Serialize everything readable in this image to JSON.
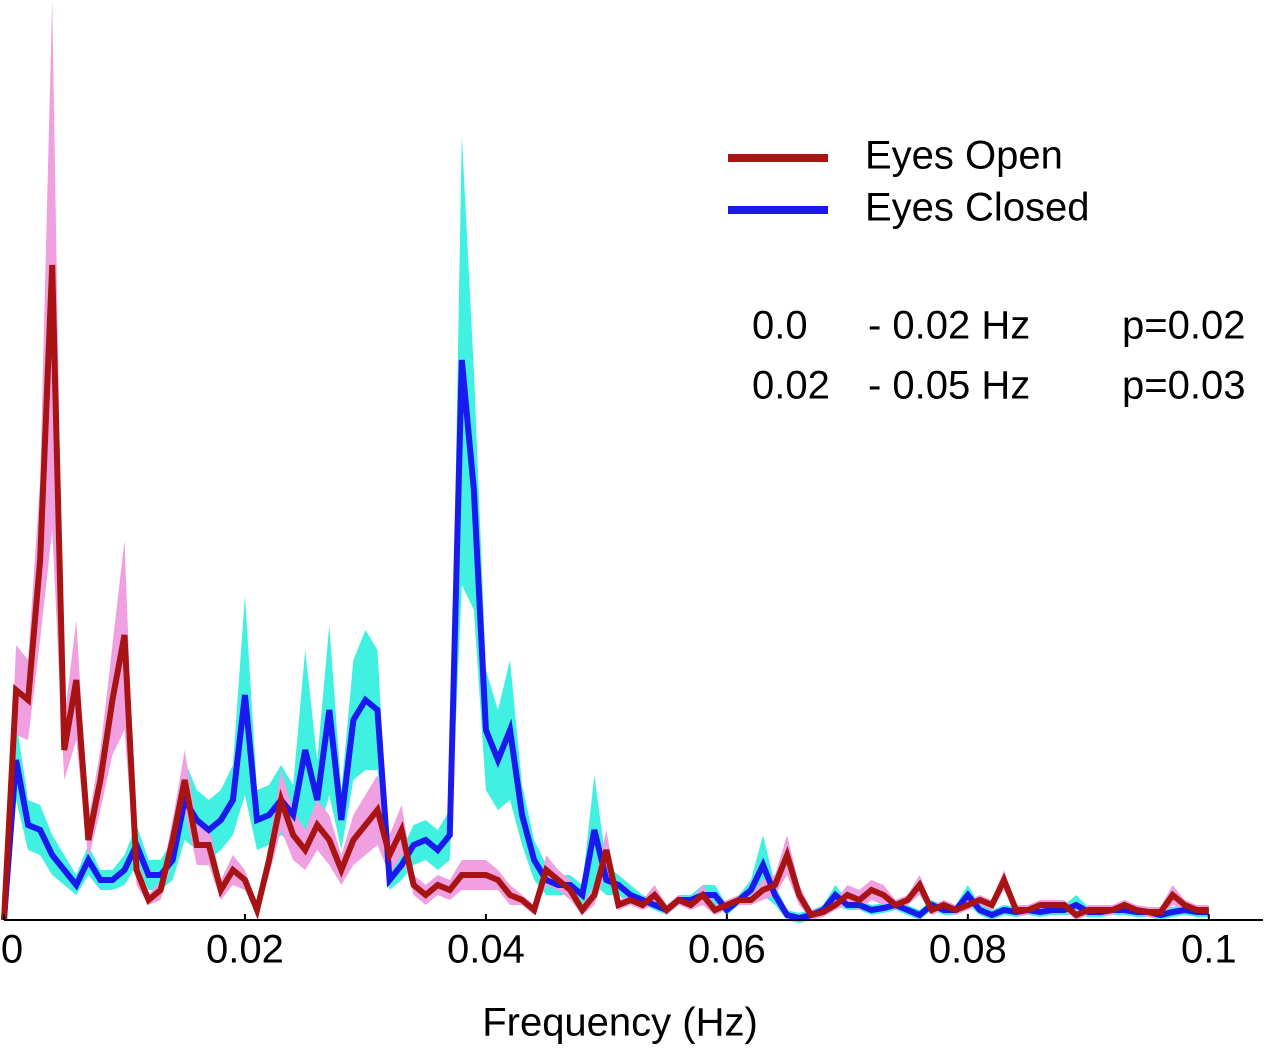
{
  "chart_data": {
    "type": "line",
    "x_label": "Frequency (Hz)",
    "x": [
      0,
      0.001,
      0.002,
      0.003,
      0.004,
      0.005,
      0.006,
      0.007,
      0.008,
      0.009,
      0.01,
      0.011,
      0.012,
      0.013,
      0.014,
      0.015,
      0.016,
      0.017,
      0.018,
      0.019,
      0.02,
      0.021,
      0.022,
      0.023,
      0.024,
      0.025,
      0.026,
      0.027,
      0.028,
      0.029,
      0.03,
      0.031,
      0.032,
      0.033,
      0.034,
      0.035,
      0.036,
      0.037,
      0.038,
      0.039,
      0.04,
      0.041,
      0.042,
      0.043,
      0.044,
      0.045,
      0.046,
      0.047,
      0.048,
      0.049,
      0.05,
      0.051,
      0.052,
      0.053,
      0.054,
      0.055,
      0.056,
      0.057,
      0.058,
      0.059,
      0.06,
      0.061,
      0.062,
      0.063,
      0.064,
      0.065,
      0.066,
      0.067,
      0.068,
      0.069,
      0.07,
      0.071,
      0.072,
      0.073,
      0.074,
      0.075,
      0.076,
      0.077,
      0.078,
      0.079,
      0.08,
      0.081,
      0.082,
      0.083,
      0.084,
      0.085,
      0.086,
      0.087,
      0.088,
      0.089,
      0.09,
      0.091,
      0.092,
      0.093,
      0.094,
      0.095,
      0.096,
      0.097,
      0.098,
      0.099,
      0.1
    ],
    "series": [
      {
        "name": "Eyes Closed",
        "color": "#1a1aee",
        "band_color": "#40f0e0",
        "values": [
          0,
          16,
          9.5,
          9,
          6.5,
          5,
          3.5,
          6,
          4,
          4,
          5,
          7.5,
          4.5,
          4.5,
          6,
          12,
          10,
          9,
          10,
          12,
          22.5,
          10,
          10.5,
          12,
          10.5,
          17,
          12,
          21,
          10,
          20,
          22,
          21,
          4,
          5.5,
          7.5,
          8,
          7,
          8.5,
          56,
          43,
          19,
          16,
          19,
          10.5,
          6,
          4,
          3.5,
          3.5,
          2.5,
          9,
          4,
          3.5,
          2.5,
          2,
          1.5,
          1,
          2,
          2,
          2.5,
          2.5,
          1,
          2,
          3,
          5.5,
          2.5,
          0.5,
          0.2,
          0.5,
          1,
          2.5,
          1.5,
          1.5,
          1,
          1.2,
          1.5,
          1,
          0.5,
          1.5,
          1,
          1,
          2.5,
          1,
          0.5,
          1,
          0.8,
          1,
          0.8,
          1,
          1,
          1.5,
          0.8,
          0.8,
          1,
          1,
          0.8,
          0.8,
          0.5,
          0.8,
          1,
          0.8,
          0.8
        ],
        "error": [
          0,
          4,
          2.5,
          2.5,
          2,
          1.5,
          1,
          1.5,
          1,
          1,
          1.5,
          2,
          1.5,
          1.5,
          2,
          4,
          3,
          3,
          3,
          3.5,
          10,
          3,
          3,
          3.5,
          3,
          10,
          4,
          8.5,
          3,
          6,
          7,
          6,
          1,
          1.5,
          2,
          2,
          2,
          2.5,
          22.5,
          12,
          6,
          5,
          7,
          3,
          2,
          1.5,
          1,
          1,
          1,
          5.5,
          1.5,
          1,
          1,
          0.5,
          0.5,
          0.5,
          0.5,
          0.5,
          1,
          1,
          0.5,
          0.5,
          1,
          3,
          1,
          0.5,
          0.5,
          0.5,
          0.5,
          1,
          0.5,
          0.5,
          0.5,
          0.5,
          0.5,
          0.5,
          0.5,
          0.5,
          0.5,
          0.5,
          1,
          0.5,
          0.5,
          0.5,
          0.5,
          0.5,
          0.5,
          0.5,
          0.5,
          1,
          0.5,
          0.5,
          0.5,
          0.5,
          0.5,
          0.5,
          0.5,
          0.5,
          0.5,
          0.5,
          0.5
        ]
      },
      {
        "name": "Eyes Open",
        "color": "#a81414",
        "band_color": "#f0a0e0",
        "values": [
          0,
          23,
          22,
          36,
          65.5,
          17,
          24,
          8,
          14,
          22,
          28.5,
          5,
          2,
          3,
          8,
          14,
          7.5,
          7.5,
          3,
          5,
          4,
          1,
          6,
          12,
          8.5,
          7,
          9.5,
          8,
          5,
          8,
          9.5,
          11,
          6.5,
          9,
          3.5,
          2.5,
          3.5,
          3,
          4.5,
          4.5,
          4.5,
          4,
          2.5,
          2,
          1,
          5,
          4,
          3,
          1,
          2.5,
          7,
          1.5,
          2,
          1.5,
          2.5,
          1,
          2,
          1.5,
          2.5,
          1,
          1.5,
          2,
          2,
          3,
          3.5,
          6.5,
          2.5,
          0.5,
          0.8,
          1.5,
          2.5,
          2,
          3,
          2.5,
          1.5,
          2,
          3.5,
          1,
          1.5,
          1,
          1.5,
          2,
          1.5,
          4,
          1,
          1,
          1.5,
          1.5,
          1.5,
          0.5,
          1,
          1,
          1,
          1.5,
          1,
          0.8,
          0.8,
          2.5,
          1.5,
          1,
          1
        ],
        "error": [
          0,
          4.5,
          4,
          8,
          26.5,
          3,
          6,
          2,
          3,
          5.5,
          9.5,
          1.5,
          0.5,
          1,
          2,
          3,
          2,
          2,
          1,
          1.5,
          1,
          0.5,
          1.5,
          3,
          2.5,
          2,
          2.5,
          2.5,
          1.5,
          2.5,
          3,
          3.5,
          2,
          2.5,
          1,
          1,
          1,
          1,
          1.5,
          1.5,
          1.5,
          1,
          1,
          0.5,
          0.5,
          1.5,
          1,
          1,
          0.5,
          1,
          2,
          0.5,
          0.5,
          0.5,
          1,
          0.5,
          0.5,
          0.5,
          1,
          0.5,
          0.5,
          0.5,
          0.5,
          1,
          1,
          2,
          1,
          0.5,
          0.5,
          0.5,
          1,
          1,
          1,
          1,
          0.5,
          0.5,
          1,
          0.5,
          0.5,
          0.5,
          0.5,
          0.5,
          0.5,
          1,
          0.5,
          0.5,
          0.5,
          0.5,
          0.5,
          0.5,
          0.5,
          0.5,
          0.5,
          0.5,
          0.5,
          0.5,
          0.5,
          1,
          0.5,
          0.5,
          0.5
        ]
      }
    ],
    "legend_order": [
      1,
      0
    ],
    "annotations": [
      [
        "0.0",
        "- 0.02 Hz",
        "p=0.02"
      ],
      [
        "0.02",
        "- 0.05 Hz",
        "p=0.03"
      ]
    ],
    "xlim": [
      0,
      0.1045
    ],
    "xticks": [
      0,
      0.02,
      0.04,
      0.06,
      0.08,
      0.1
    ],
    "ylim": [
      0,
      92
    ],
    "grid": false
  }
}
